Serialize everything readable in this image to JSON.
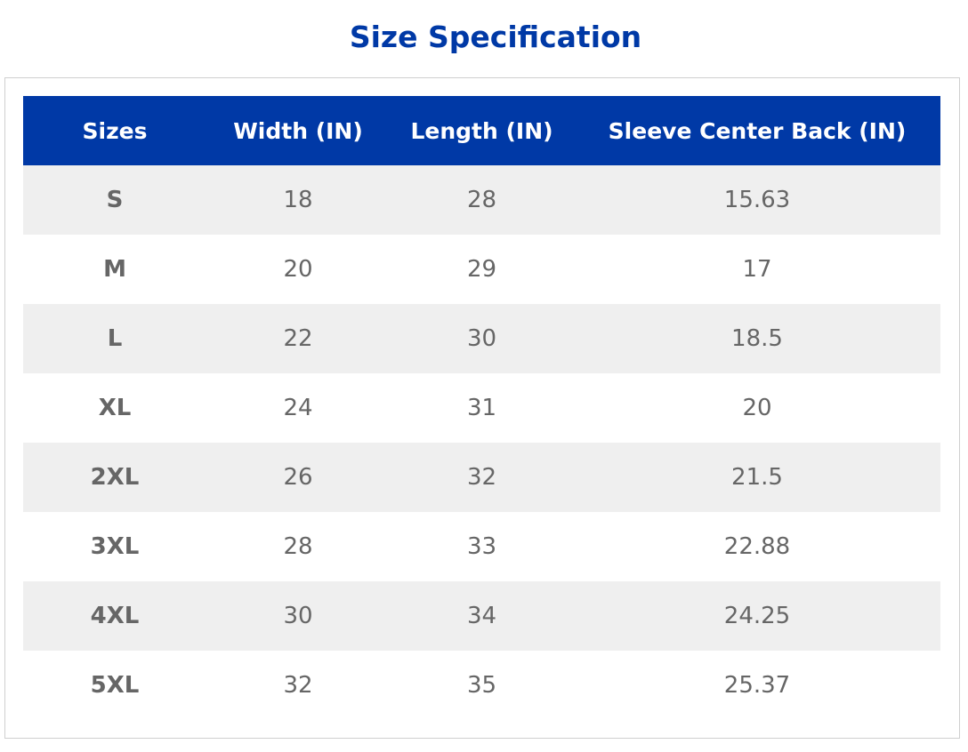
{
  "title": "Size Specification",
  "table": {
    "headers": [
      "Sizes",
      "Width (IN)",
      "Length (IN)",
      "Sleeve Center Back (IN)"
    ],
    "rows": [
      [
        "S",
        18,
        28,
        15.63
      ],
      [
        "M",
        20,
        29,
        17
      ],
      [
        "L",
        22,
        30,
        18.5
      ],
      [
        "XL",
        24,
        31,
        20
      ],
      [
        "2XL",
        26,
        32,
        21.5
      ],
      [
        "3XL",
        28,
        33,
        22.88
      ],
      [
        "4XL",
        30,
        34,
        24.25
      ],
      [
        "5XL",
        32,
        35,
        25.37
      ]
    ]
  }
}
